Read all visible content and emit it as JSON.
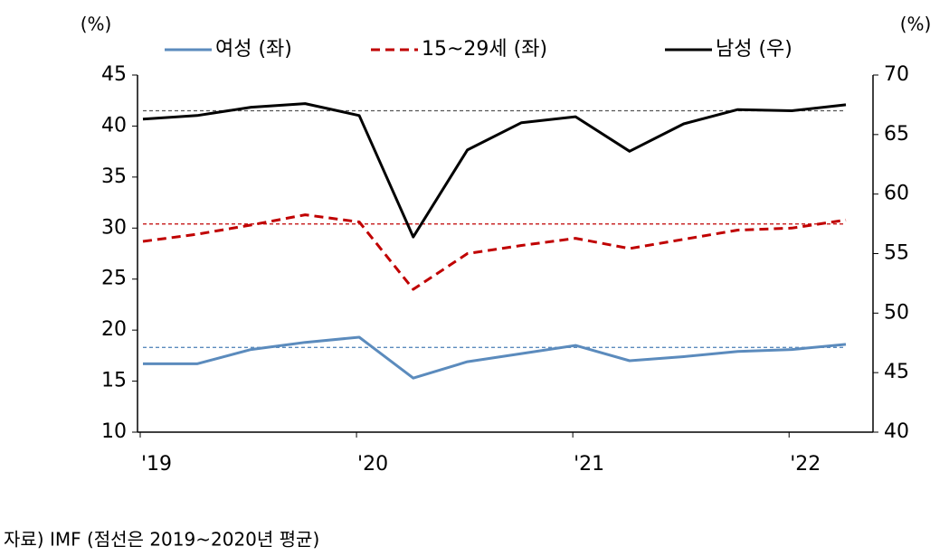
{
  "chart_data": {
    "type": "line",
    "left_unit": "(%)",
    "right_unit": "(%)",
    "categories": [
      "'19",
      null,
      null,
      null,
      "'20",
      null,
      null,
      null,
      "'21",
      null,
      null,
      null,
      "'22",
      null
    ],
    "series": [
      {
        "name": "여성 (좌)",
        "color": "#5b8bbd",
        "dash": false,
        "axis": "y",
        "values": [
          16.7,
          16.7,
          18.1,
          18.8,
          19.3,
          15.3,
          16.9,
          17.7,
          18.5,
          17.0,
          17.4,
          17.9,
          18.1,
          18.6
        ]
      },
      {
        "name": "15~29세 (좌)",
        "color": "#c00000",
        "dash": true,
        "axis": "y",
        "values": [
          28.7,
          29.4,
          30.3,
          31.3,
          30.6,
          24.0,
          27.5,
          28.3,
          29.0,
          28.0,
          28.9,
          29.8,
          30.0,
          30.8
        ]
      },
      {
        "name": "남성 (우)",
        "color": "#000000",
        "dash": false,
        "axis": "y2",
        "values": [
          66.3,
          66.6,
          67.3,
          67.6,
          66.6,
          56.4,
          63.7,
          66.0,
          66.5,
          63.6,
          65.9,
          67.1,
          67.0,
          67.5
        ]
      }
    ],
    "reference_lines": [
      {
        "value": 18.3,
        "axis": "y",
        "color": "#5b8bbd"
      },
      {
        "value": 30.4,
        "axis": "y",
        "color": "#c00000"
      },
      {
        "value": 67.0,
        "axis": "y2",
        "color": "#555555"
      }
    ],
    "ylim": [
      10,
      45
    ],
    "yticks": [
      10,
      15,
      20,
      25,
      30,
      35,
      40,
      45
    ],
    "y2lim": [
      40,
      70
    ],
    "y2ticks": [
      40,
      45,
      50,
      55,
      60,
      65,
      70
    ],
    "source": "자료) IMF (점선은 2019~2020년 평균)"
  }
}
